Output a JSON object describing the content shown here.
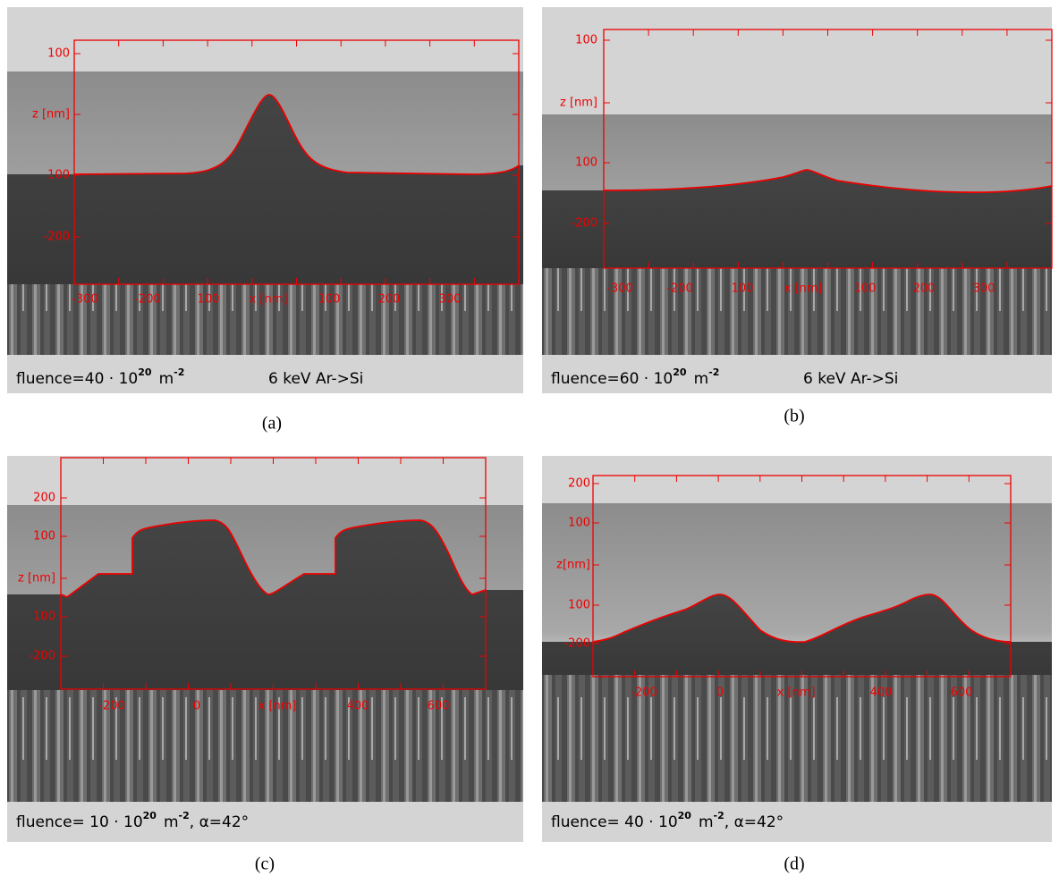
{
  "panels": [
    {
      "label": "(a)",
      "y_labels": [
        "100",
        "z [nm]",
        "100",
        "-200"
      ],
      "x_labels": [
        "-300",
        "-200",
        "100",
        "x [nm]",
        "100",
        "200",
        "300"
      ],
      "caption": {
        "main": "fluence=40 · 10",
        "exp": "20",
        "unit": "m",
        "unit_exp": "-2",
        "tail": "6 keV Ar->Si"
      }
    },
    {
      "label": "(b)",
      "y_labels": [
        "100",
        "z [nm]",
        "100",
        "-200"
      ],
      "x_labels": [
        "-300",
        "-200",
        "100",
        "x [nm]",
        "100",
        "200",
        "300"
      ],
      "caption": {
        "main": "fluence=60 · 10",
        "exp": "20",
        "unit": "m",
        "unit_exp": "-2",
        "tail": "6 keV Ar->Si"
      }
    },
    {
      "label": "(c)",
      "y_labels": [
        "200",
        "100",
        "z [nm]",
        "100",
        "-200"
      ],
      "x_labels": [
        "-200",
        "0",
        "x [nm]",
        "400",
        "600"
      ],
      "caption": {
        "main": "fluence= 10 · 10",
        "exp": "20",
        "unit": "m",
        "unit_exp": "-2",
        "tail": ", α=42°"
      }
    },
    {
      "label": "(d)",
      "y_labels": [
        "200",
        "100",
        "z[nm]",
        "100",
        "-200"
      ],
      "x_labels": [
        "-200",
        "0",
        "x [nm]",
        "400",
        "600"
      ],
      "caption": {
        "main": "fluence= 40 · 10",
        "exp": "20",
        "unit": "m",
        "unit_exp": "-2",
        "tail": ", α=42°"
      }
    }
  ]
}
